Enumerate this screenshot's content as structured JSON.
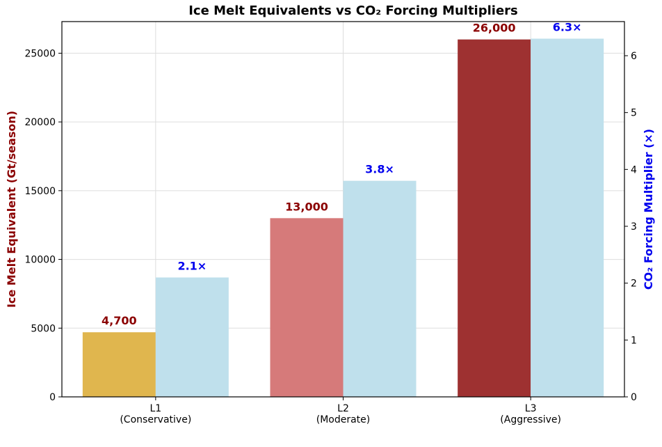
{
  "chart_data": {
    "type": "bar",
    "title": "Ice Melt Equivalents vs CO₂ Forcing Multipliers",
    "categories": [
      "L1\n(Conservative)",
      "L2\n(Moderate)",
      "L3\n(Aggressive)"
    ],
    "series": [
      {
        "axis": "left",
        "values": [
          4700,
          13000,
          26000
        ],
        "value_labels": [
          "4,700",
          "13,000",
          "26,000"
        ],
        "colors": [
          "#e0b64e",
          "#d67a7a",
          "#9e3131"
        ],
        "label_color": "#8b0000"
      },
      {
        "axis": "right",
        "values": [
          2.1,
          3.8,
          6.3
        ],
        "value_labels": [
          "2.1×",
          "3.8×",
          "6.3×"
        ],
        "colors": [
          "#bfe0ec",
          "#bfe0ec",
          "#bfe0ec"
        ],
        "label_color": "#0000ee"
      }
    ],
    "ylabel_left": "Ice Melt Equivalent (Gt/season)",
    "ylabel_right": "CO₂ Forcing Multiplier (×)",
    "ylim_left": [
      0,
      27300
    ],
    "ylim_right": [
      0,
      6.6
    ],
    "yticks_left": [
      0,
      5000,
      10000,
      15000,
      20000,
      25000
    ],
    "yticks_right": [
      0,
      1,
      2,
      3,
      4,
      5,
      6
    ],
    "ylabel_left_color": "#8b0000",
    "ylabel_right_color": "#0000ee",
    "grid": true
  }
}
